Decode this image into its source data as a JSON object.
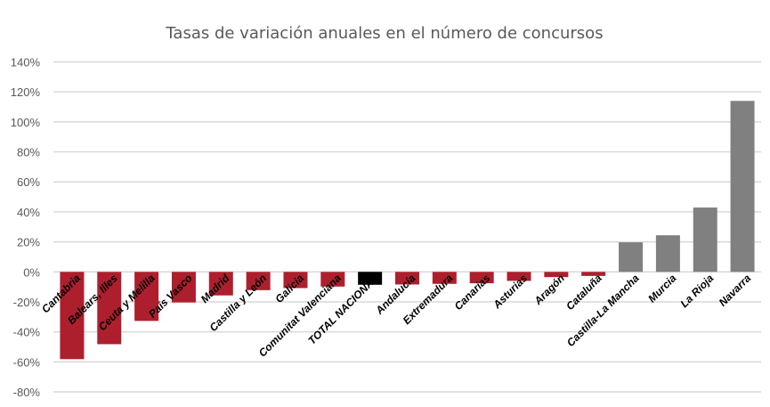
{
  "chart_data": {
    "type": "bar",
    "title": "Tasas de variación anuales en el número de concursos",
    "xlabel": "",
    "ylabel": "",
    "ylim": [
      -80,
      140
    ],
    "yticks": [
      140,
      120,
      100,
      80,
      60,
      40,
      20,
      0,
      -20,
      -40,
      -60,
      -80
    ],
    "ytick_labels": [
      "140%",
      "120%",
      "100%",
      "80%",
      "60%",
      "40%",
      "20%",
      "0%",
      "-20%",
      "-40%",
      "-60%",
      "-80%"
    ],
    "grid": true,
    "categories": [
      "Cantabria",
      "Balears, Illes",
      "Ceuta y Melilla",
      "País Vasco",
      "Madrid",
      "Castilla y León",
      "Galicia",
      "Comunitat Valenciana",
      "TOTAL NACIONAL",
      "Andalucía",
      "Extremadura",
      "Canarias",
      "Asturias",
      "Aragón",
      "Cataluña",
      "Castilla-La Mancha",
      "Murcia",
      "La Rioja",
      "Navarra"
    ],
    "values": [
      -58.2,
      -48.2,
      -32.7,
      -20.4,
      -15.7,
      -12.2,
      -10.8,
      -9.8,
      -8.6,
      -8.4,
      -8.0,
      -7.6,
      -6.0,
      -3.5,
      -2.7,
      19.7,
      24.4,
      42.9,
      114.0
    ],
    "colors": {
      "negative": "#ad1f2d",
      "positive": "#808080",
      "total": "#000000"
    },
    "highlight_category": "TOTAL NACIONAL"
  }
}
